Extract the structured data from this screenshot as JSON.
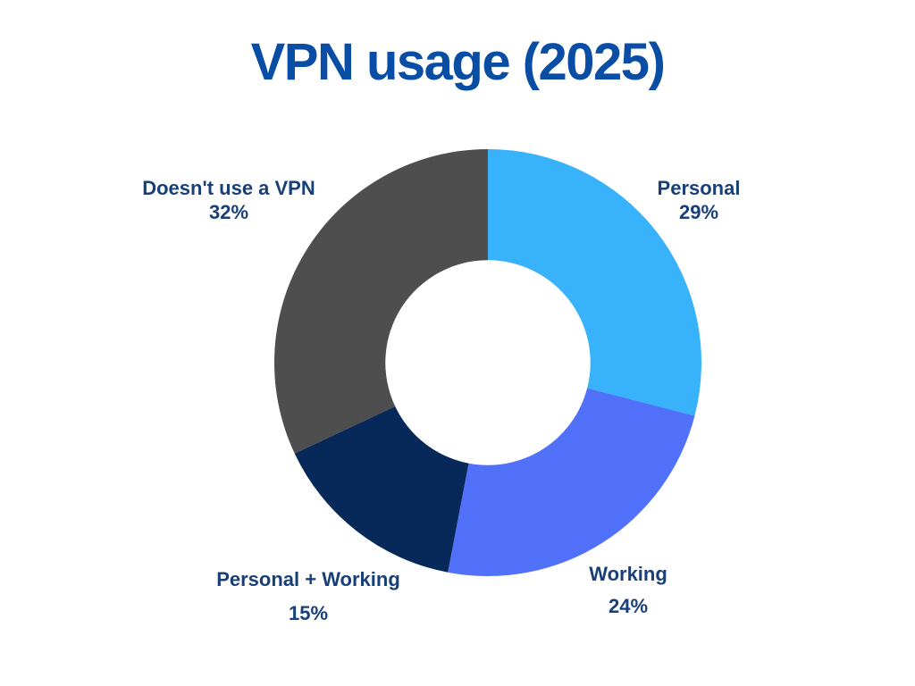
{
  "title": "VPN usage (2025)",
  "colors": {
    "title": "#0A4DA5",
    "label": "#183F78",
    "background": "#FFFFFF"
  },
  "chart_data": {
    "type": "pie",
    "subtype": "donut",
    "title": "VPN usage (2025)",
    "categories": [
      "Personal",
      "Working",
      "Personal + Working",
      "Doesn't use a VPN"
    ],
    "values": [
      29,
      24,
      15,
      32
    ],
    "unit": "%",
    "slices": [
      {
        "label": "Personal",
        "value": 29,
        "pct_label": "29%",
        "color": "#38B2FA"
      },
      {
        "label": "Working",
        "value": 24,
        "pct_label": "24%",
        "color": "#5271FB"
      },
      {
        "label": "Personal + Working",
        "value": 15,
        "pct_label": "15%",
        "color": "#06295A"
      },
      {
        "label": "Doesn't use a VPN",
        "value": 32,
        "pct_label": "32%",
        "color": "#4E4E4E"
      }
    ],
    "start_angle_deg": 0,
    "direction": "clockwise",
    "donut_hole_ratio": 0.48,
    "legend": "none",
    "data_labels": "outside"
  }
}
